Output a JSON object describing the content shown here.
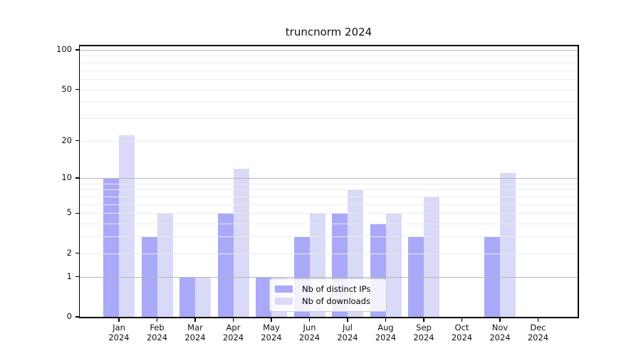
{
  "title": "truncnorm 2024",
  "chart_data": {
    "type": "bar",
    "title": "truncnorm 2024",
    "categories": [
      {
        "month": "Jan",
        "year": "2024"
      },
      {
        "month": "Feb",
        "year": "2024"
      },
      {
        "month": "Mar",
        "year": "2024"
      },
      {
        "month": "Apr",
        "year": "2024"
      },
      {
        "month": "May",
        "year": "2024"
      },
      {
        "month": "Jun",
        "year": "2024"
      },
      {
        "month": "Jul",
        "year": "2024"
      },
      {
        "month": "Aug",
        "year": "2024"
      },
      {
        "month": "Sep",
        "year": "2024"
      },
      {
        "month": "Oct",
        "year": "2024"
      },
      {
        "month": "Nov",
        "year": "2024"
      },
      {
        "month": "Dec",
        "year": "2024"
      }
    ],
    "series": [
      {
        "name": "Nb of distinct IPs",
        "color": "#a9a9f9",
        "values": [
          10,
          3,
          1,
          5,
          1,
          3,
          5,
          4,
          3,
          0,
          3,
          0
        ]
      },
      {
        "name": "Nb of downloads",
        "color": "#d9d9f8",
        "values": [
          22,
          5,
          1,
          12,
          1,
          5,
          8,
          5,
          7,
          0,
          11,
          0
        ]
      }
    ],
    "xlabel": "",
    "ylabel": "",
    "yaxis": {
      "scale": "log1p",
      "tick_values": [
        0,
        1,
        2,
        5,
        10,
        20,
        50,
        100
      ],
      "tick_labels": [
        "0",
        "1",
        "2",
        "5",
        "10",
        "20",
        "50",
        "100"
      ],
      "major_gridline_values": [
        1,
        10,
        100
      ],
      "minor_gridline_values": [
        2,
        3,
        4,
        5,
        6,
        7,
        8,
        9,
        20,
        30,
        40,
        50,
        60,
        70,
        80,
        90
      ],
      "range": [
        0,
        110
      ]
    },
    "grid": true,
    "grid_above_bars": true,
    "legend": {
      "position": "lower center",
      "labels": [
        "Nb of distinct IPs",
        "Nb of downloads"
      ]
    }
  }
}
